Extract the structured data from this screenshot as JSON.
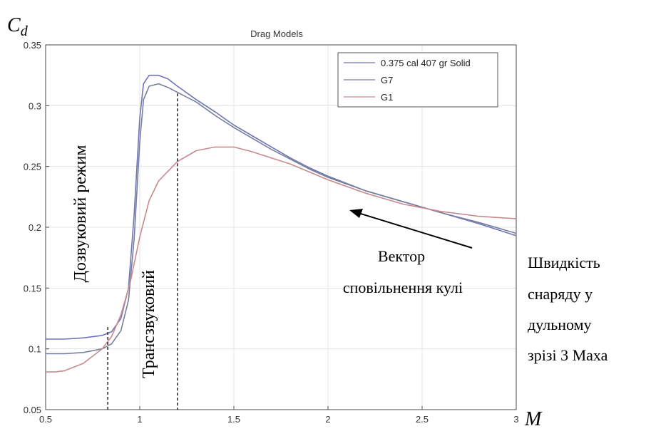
{
  "chart_data": {
    "type": "line",
    "title": "Drag Models",
    "xlabel": "M",
    "ylabel_main": "C",
    "ylabel_sub": "d",
    "xlim": [
      0.5,
      3
    ],
    "ylim": [
      0.05,
      0.35
    ],
    "xticks": [
      "0.5",
      "1",
      "1.5",
      "2",
      "2.5",
      "3"
    ],
    "yticks": [
      "0.05",
      "0.1",
      "0.15",
      "0.2",
      "0.25",
      "0.3",
      "0.35"
    ],
    "grid": true,
    "legend_position": "top-right",
    "series": [
      {
        "name": "0.375 cal 407 gr Solid",
        "color": "#6f74b5",
        "points": [
          [
            0.5,
            0.108
          ],
          [
            0.6,
            0.108
          ],
          [
            0.7,
            0.109
          ],
          [
            0.8,
            0.111
          ],
          [
            0.85,
            0.114
          ],
          [
            0.9,
            0.125
          ],
          [
            0.94,
            0.15
          ],
          [
            0.97,
            0.21
          ],
          [
            1.0,
            0.29
          ],
          [
            1.02,
            0.318
          ],
          [
            1.05,
            0.325
          ],
          [
            1.1,
            0.325
          ],
          [
            1.15,
            0.322
          ],
          [
            1.2,
            0.316
          ],
          [
            1.3,
            0.305
          ],
          [
            1.4,
            0.295
          ],
          [
            1.5,
            0.284
          ],
          [
            1.6,
            0.275
          ],
          [
            1.7,
            0.266
          ],
          [
            1.8,
            0.257
          ],
          [
            1.9,
            0.249
          ],
          [
            2.0,
            0.242
          ],
          [
            2.2,
            0.23
          ],
          [
            2.4,
            0.221
          ],
          [
            2.6,
            0.212
          ],
          [
            2.8,
            0.203
          ],
          [
            3.0,
            0.193
          ]
        ]
      },
      {
        "name": "G7",
        "color": "#767f9b",
        "points": [
          [
            0.5,
            0.096
          ],
          [
            0.6,
            0.096
          ],
          [
            0.7,
            0.097
          ],
          [
            0.8,
            0.1
          ],
          [
            0.85,
            0.104
          ],
          [
            0.9,
            0.115
          ],
          [
            0.94,
            0.14
          ],
          [
            0.97,
            0.19
          ],
          [
            1.0,
            0.27
          ],
          [
            1.02,
            0.305
          ],
          [
            1.05,
            0.316
          ],
          [
            1.1,
            0.318
          ],
          [
            1.15,
            0.315
          ],
          [
            1.2,
            0.311
          ],
          [
            1.3,
            0.303
          ],
          [
            1.4,
            0.292
          ],
          [
            1.5,
            0.282
          ],
          [
            1.6,
            0.273
          ],
          [
            1.7,
            0.264
          ],
          [
            1.8,
            0.256
          ],
          [
            1.9,
            0.248
          ],
          [
            2.0,
            0.241
          ],
          [
            2.2,
            0.23
          ],
          [
            2.4,
            0.221
          ],
          [
            2.6,
            0.212
          ],
          [
            2.8,
            0.204
          ],
          [
            3.0,
            0.195
          ]
        ]
      },
      {
        "name": "G1",
        "color": "#c98a8f",
        "points": [
          [
            0.5,
            0.081
          ],
          [
            0.55,
            0.081
          ],
          [
            0.6,
            0.082
          ],
          [
            0.7,
            0.088
          ],
          [
            0.8,
            0.1
          ],
          [
            0.85,
            0.11
          ],
          [
            0.9,
            0.128
          ],
          [
            0.95,
            0.155
          ],
          [
            1.0,
            0.192
          ],
          [
            1.05,
            0.222
          ],
          [
            1.1,
            0.238
          ],
          [
            1.2,
            0.254
          ],
          [
            1.3,
            0.263
          ],
          [
            1.4,
            0.266
          ],
          [
            1.5,
            0.266
          ],
          [
            1.6,
            0.262
          ],
          [
            1.8,
            0.252
          ],
          [
            2.0,
            0.239
          ],
          [
            2.2,
            0.228
          ],
          [
            2.4,
            0.219
          ],
          [
            2.6,
            0.213
          ],
          [
            2.8,
            0.209
          ],
          [
            3.0,
            0.207
          ]
        ]
      }
    ],
    "reference_lines_x": [
      0.83,
      1.2
    ],
    "annotations": {
      "subsonic_label": "Дозвуковий режим",
      "transonic_label": "Трансзвуковий",
      "vector_line1": "Вектор",
      "vector_line2": "сповільнення кулі",
      "muzzle_line1": "Швидкість",
      "muzzle_line2": "снаряду у",
      "muzzle_line3": "дульному",
      "muzzle_line4": "зрізі 3 Маха"
    }
  }
}
